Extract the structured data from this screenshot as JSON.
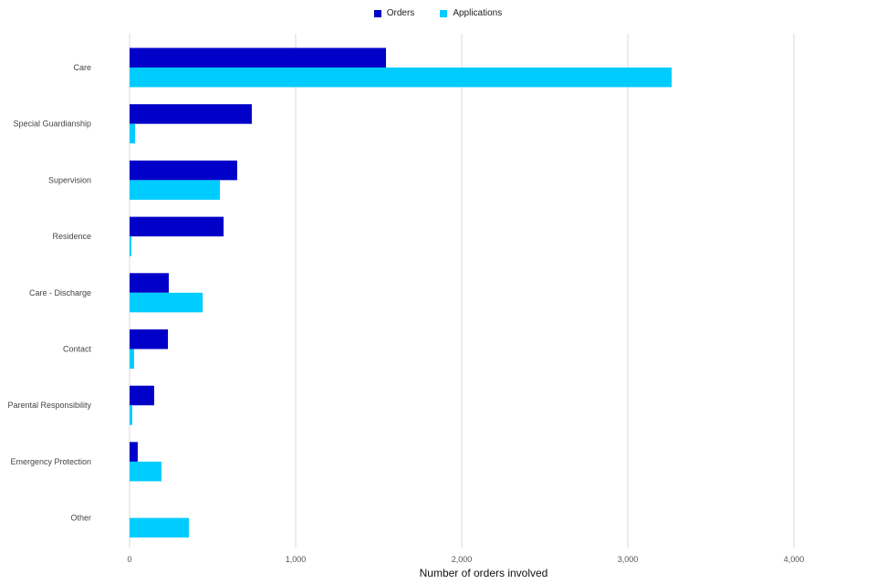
{
  "chart_data": {
    "type": "bar",
    "orientation": "horizontal",
    "title": "",
    "xlabel": "Number of orders involved",
    "ylabel": "",
    "xlim": [
      0,
      4500
    ],
    "xticks": [
      0,
      1000,
      2000,
      3000,
      4000
    ],
    "xtick_labels": [
      "0",
      "1,000",
      "2,000",
      "3,000",
      "4,000"
    ],
    "grid": true,
    "legend_position": "top-center",
    "categories": [
      "Care",
      "Special Guardianship",
      "Supervision",
      "Residence",
      "Care - Discharge",
      "Contact",
      "Parental Responsibility",
      "Emergency Protection",
      "Other"
    ],
    "series": [
      {
        "name": "Orders",
        "color": "#0000c8",
        "values": [
          1544,
          736,
          648,
          566,
          236,
          231,
          148,
          49,
          0
        ]
      },
      {
        "name": "Applications",
        "color": "#00ccff",
        "values": [
          3264,
          33,
          544,
          11,
          440,
          27,
          16,
          192,
          357
        ]
      }
    ]
  }
}
